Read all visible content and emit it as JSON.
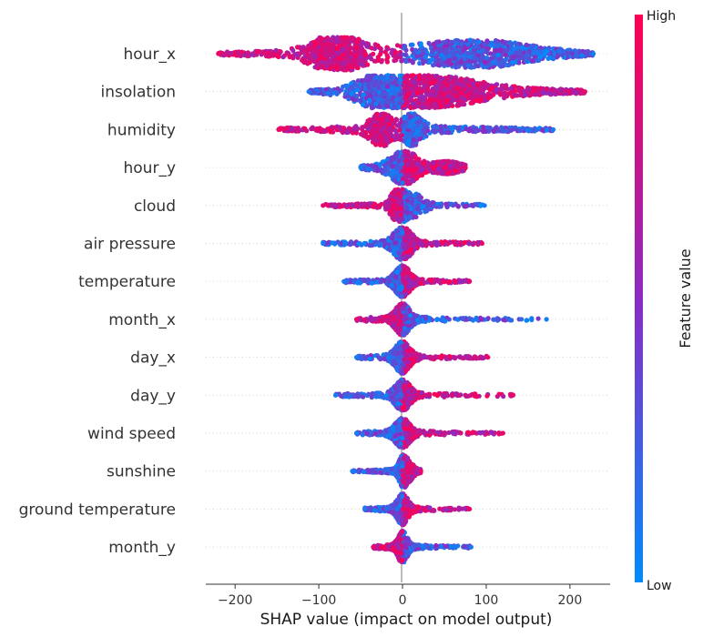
{
  "chart_data": {
    "type": "scatter",
    "subtype": "shap-beeswarm",
    "title": "",
    "xlabel": "SHAP value (impact on model output)",
    "ylabel": "",
    "xlim": [
      -235,
      248
    ],
    "xticks": [
      -200,
      -100,
      0,
      100,
      200
    ],
    "zero_line": true,
    "grid": "dotted-row-guides",
    "colorbar": {
      "label": "Feature value",
      "high_label": "High",
      "low_label": "Low",
      "low_color": "#008bfb",
      "high_color": "#ff0052"
    },
    "features": [
      {
        "name": "hour_x",
        "min": -220,
        "max": 228,
        "mode": "wide",
        "low_side": "right",
        "peaks": [
          {
            "at": -80,
            "w": 25,
            "h": 17
          },
          {
            "at": 95,
            "w": 55,
            "h": 10
          }
        ]
      },
      {
        "name": "insolation",
        "min": -112,
        "max": 218,
        "mode": "wide",
        "low_side": "left",
        "peaks": [
          {
            "at": -20,
            "w": 28,
            "h": 17
          },
          {
            "at": 50,
            "w": 40,
            "h": 9
          }
        ]
      },
      {
        "name": "humidity",
        "min": -148,
        "max": 180,
        "mode": "spread",
        "low_side": "right",
        "peaks": [
          {
            "at": -25,
            "w": 12,
            "h": 15
          },
          {
            "at": 12,
            "w": 10,
            "h": 14
          }
        ]
      },
      {
        "name": "hour_y",
        "min": -50,
        "max": 75,
        "mode": "spread",
        "low_side": "left",
        "peaks": [
          {
            "at": 2,
            "w": 14,
            "h": 15
          },
          {
            "at": 55,
            "w": 14,
            "h": 5
          }
        ]
      },
      {
        "name": "cloud",
        "min": -95,
        "max": 98,
        "mode": "center",
        "low_side": "right",
        "peaks": [
          {
            "at": -5,
            "w": 8,
            "h": 16
          },
          {
            "at": 15,
            "w": 10,
            "h": 10
          }
        ]
      },
      {
        "name": "air pressure",
        "min": -95,
        "max": 95,
        "mode": "center",
        "low_side": "left",
        "peaks": [
          {
            "at": 0,
            "w": 10,
            "h": 16
          }
        ]
      },
      {
        "name": "temperature",
        "min": -70,
        "max": 80,
        "mode": "center",
        "low_side": "left",
        "peaks": [
          {
            "at": 0,
            "w": 8,
            "h": 15
          }
        ]
      },
      {
        "name": "month_x",
        "min": -55,
        "max": 172,
        "mode": "center",
        "low_side": "right",
        "peaks": [
          {
            "at": 0,
            "w": 8,
            "h": 15
          }
        ]
      },
      {
        "name": "day_x",
        "min": -55,
        "max": 102,
        "mode": "center",
        "low_side": "left",
        "peaks": [
          {
            "at": 0,
            "w": 8,
            "h": 15
          }
        ]
      },
      {
        "name": "day_y",
        "min": -80,
        "max": 132,
        "mode": "center",
        "low_side": "left",
        "peaks": [
          {
            "at": 0,
            "w": 8,
            "h": 15
          }
        ]
      },
      {
        "name": "wind speed",
        "min": -55,
        "max": 120,
        "mode": "center",
        "low_side": "left",
        "peaks": [
          {
            "at": 0,
            "w": 8,
            "h": 14
          }
        ]
      },
      {
        "name": "sunshine",
        "min": -60,
        "max": 22,
        "mode": "center",
        "low_side": "left",
        "peaks": [
          {
            "at": 0,
            "w": 4,
            "h": 14
          },
          {
            "at": 8,
            "w": 5,
            "h": 8
          }
        ]
      },
      {
        "name": "ground temperature",
        "min": -45,
        "max": 80,
        "mode": "center",
        "low_side": "left",
        "peaks": [
          {
            "at": 0,
            "w": 6,
            "h": 15
          }
        ]
      },
      {
        "name": "month_y",
        "min": -35,
        "max": 82,
        "mode": "center",
        "low_side": "right",
        "peaks": [
          {
            "at": 0,
            "w": 5,
            "h": 16
          }
        ]
      }
    ]
  }
}
